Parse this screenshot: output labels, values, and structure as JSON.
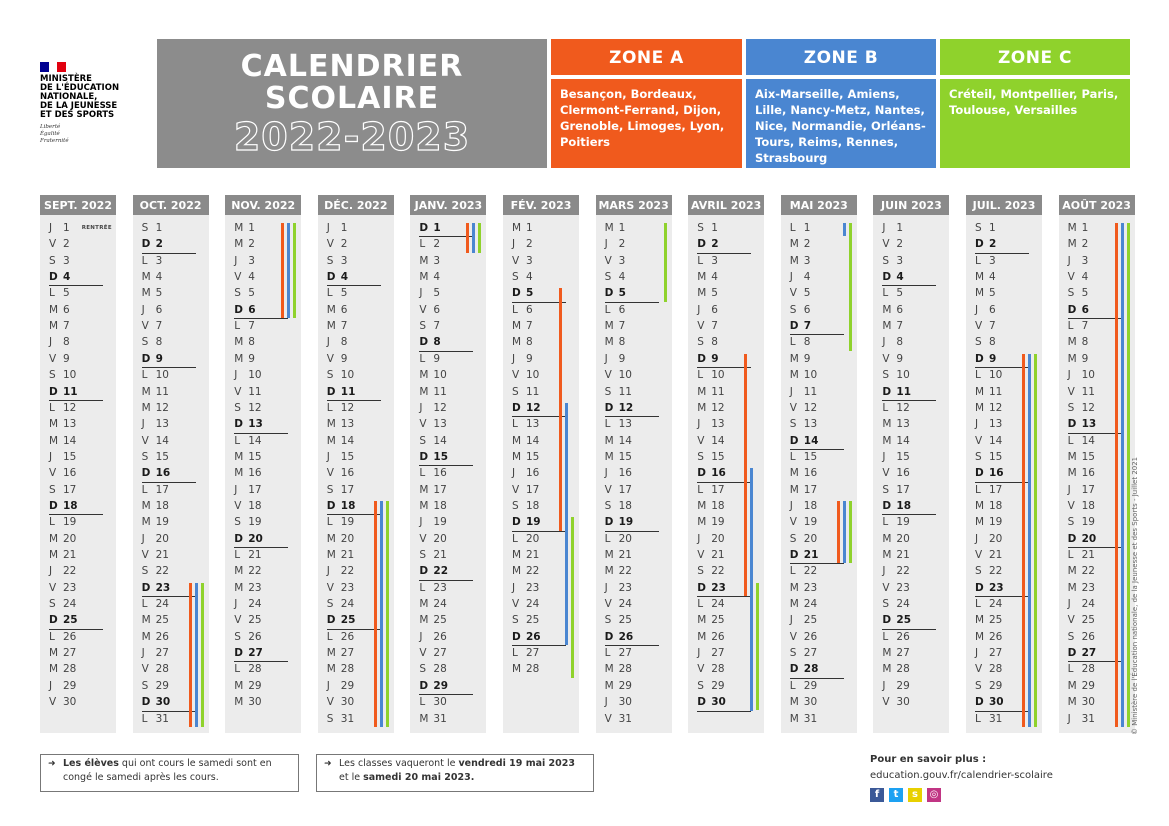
{
  "logo": {
    "ministry": "MINISTÈRE\nDE L'ÉDUCATION\nNATIONALE,\nDE LA JEUNESSE\nET DES SPORTS",
    "motto": "Liberté\nÉgalité\nFraternité",
    "flag_colors": [
      "#000091",
      "#ffffff",
      "#e1000f"
    ]
  },
  "title": {
    "line1": "CALENDRIER",
    "line2": "SCOLAIRE",
    "year": "2022-2023"
  },
  "zones": [
    {
      "name": "ZONE A",
      "color": "#f05a1d",
      "cities": "Besançon, Bordeaux, Clermont-Ferrand, Dijon, Grenoble, Limoges, Lyon, Poitiers"
    },
    {
      "name": "ZONE B",
      "color": "#4a86d1",
      "cities": "Aix-Marseille, Amiens, Lille, Nancy-Metz, Nantes, Nice, Normandie, Orléans-Tours, Reims, Rennes, Strasbourg"
    },
    {
      "name": "ZONE C",
      "color": "#8fd22c",
      "cities": "Créteil, Montpellier, Paris, Toulouse, Versailles"
    }
  ],
  "rentree_label": "RENTRÉE",
  "months": [
    {
      "name": "SEPT. 2022",
      "days": [
        "J 1",
        "V 2",
        "S 3",
        "D 4",
        "L 5",
        "M 6",
        "M 7",
        "J 8",
        "V 9",
        "S 10",
        "D 11",
        "L 12",
        "M 13",
        "M 14",
        "J 15",
        "V 16",
        "S 17",
        "D 18",
        "L 19",
        "M 20",
        "M 21",
        "J 22",
        "V 23",
        "S 24",
        "D 25",
        "L 26",
        "M 27",
        "M 28",
        "J 29",
        "V 30"
      ]
    },
    {
      "name": "OCT. 2022",
      "days": [
        "S 1",
        "D 2",
        "L 3",
        "M 4",
        "M 5",
        "J 6",
        "V 7",
        "S 8",
        "D 9",
        "L 10",
        "M 11",
        "M 12",
        "J 13",
        "V 14",
        "S 15",
        "D 16",
        "L 17",
        "M 18",
        "M 19",
        "J 20",
        "V 21",
        "S 22",
        "D 23",
        "L 24",
        "M 25",
        "M 26",
        "J 27",
        "V 28",
        "S 29",
        "D 30",
        "L 31"
      ]
    },
    {
      "name": "NOV. 2022",
      "days": [
        "M 1",
        "M 2",
        "J 3",
        "V 4",
        "S 5",
        "D 6",
        "L 7",
        "M 8",
        "M 9",
        "J 10",
        "V 11",
        "S 12",
        "D 13",
        "L 14",
        "M 15",
        "M 16",
        "J 17",
        "V 18",
        "S 19",
        "D 20",
        "L 21",
        "M 22",
        "M 23",
        "J 24",
        "V 25",
        "S 26",
        "D 27",
        "L 28",
        "M 29",
        "M 30"
      ]
    },
    {
      "name": "DÉC. 2022",
      "days": [
        "J 1",
        "V 2",
        "S 3",
        "D 4",
        "L 5",
        "M 6",
        "M 7",
        "J 8",
        "V 9",
        "S 10",
        "D 11",
        "L 12",
        "M 13",
        "M 14",
        "J 15",
        "V 16",
        "S 17",
        "D 18",
        "L 19",
        "M 20",
        "M 21",
        "J 22",
        "V 23",
        "S 24",
        "D 25",
        "L 26",
        "M 27",
        "M 28",
        "J 29",
        "V 30",
        "S 31"
      ]
    },
    {
      "name": "JANV. 2023",
      "days": [
        "D 1",
        "L 2",
        "M 3",
        "M 4",
        "J 5",
        "V 6",
        "S 7",
        "D 8",
        "L 9",
        "M 10",
        "M 11",
        "J 12",
        "V 13",
        "S 14",
        "D 15",
        "L 16",
        "M 17",
        "M 18",
        "J 19",
        "V 20",
        "S 21",
        "D 22",
        "L 23",
        "M 24",
        "M 25",
        "J 26",
        "V 27",
        "S 28",
        "D 29",
        "L 30",
        "M 31"
      ]
    },
    {
      "name": "FÉV. 2023",
      "days": [
        "M 1",
        "J 2",
        "V 3",
        "S 4",
        "D 5",
        "L 6",
        "M 7",
        "M 8",
        "J 9",
        "V 10",
        "S 11",
        "D 12",
        "L 13",
        "M 14",
        "M 15",
        "J 16",
        "V 17",
        "S 18",
        "D 19",
        "L 20",
        "M 21",
        "M 22",
        "J 23",
        "V 24",
        "S 25",
        "D 26",
        "L 27",
        "M 28"
      ]
    },
    {
      "name": "MARS 2023",
      "days": [
        "M 1",
        "J 2",
        "V 3",
        "S 4",
        "D 5",
        "L 6",
        "M 7",
        "M 8",
        "J 9",
        "V 10",
        "S 11",
        "D 12",
        "L 13",
        "M 14",
        "M 15",
        "J 16",
        "V 17",
        "S 18",
        "D 19",
        "L 20",
        "M 21",
        "M 22",
        "J 23",
        "V 24",
        "S 25",
        "D 26",
        "L 27",
        "M 28",
        "M 29",
        "J 30",
        "V 31"
      ]
    },
    {
      "name": "AVRIL 2023",
      "days": [
        "S 1",
        "D 2",
        "L 3",
        "M 4",
        "M 5",
        "J 6",
        "V 7",
        "S 8",
        "D 9",
        "L 10",
        "M 11",
        "M 12",
        "J 13",
        "V 14",
        "S 15",
        "D 16",
        "L 17",
        "M 18",
        "M 19",
        "J 20",
        "V 21",
        "S 22",
        "D 23",
        "L 24",
        "M 25",
        "M 26",
        "J 27",
        "V 28",
        "S 29",
        "D 30"
      ]
    },
    {
      "name": "MAI 2023",
      "days": [
        "L 1",
        "M 2",
        "M 3",
        "J 4",
        "V 5",
        "S 6",
        "D 7",
        "L 8",
        "M 9",
        "M 10",
        "J 11",
        "V 12",
        "S 13",
        "D 14",
        "L 15",
        "M 16",
        "M 17",
        "J 18",
        "V 19",
        "S 20",
        "D 21",
        "L 22",
        "M 23",
        "M 24",
        "J 25",
        "V 26",
        "S 27",
        "D 28",
        "L 29",
        "M 30",
        "M 31"
      ]
    },
    {
      "name": "JUIN 2023",
      "days": [
        "J 1",
        "V 2",
        "S 3",
        "D 4",
        "L 5",
        "M 6",
        "M 7",
        "J 8",
        "V 9",
        "S 10",
        "D 11",
        "L 12",
        "M 13",
        "M 14",
        "J 15",
        "V 16",
        "S 17",
        "D 18",
        "L 19",
        "M 20",
        "M 21",
        "J 22",
        "V 23",
        "S 24",
        "D 25",
        "L 26",
        "M 27",
        "M 28",
        "J 29",
        "V 30"
      ]
    },
    {
      "name": "JUIL. 2023",
      "days": [
        "S 1",
        "D 2",
        "L 3",
        "M 4",
        "M 5",
        "J 6",
        "V 7",
        "S 8",
        "D 9",
        "L 10",
        "M 11",
        "M 12",
        "J 13",
        "V 14",
        "S 15",
        "D 16",
        "L 17",
        "M 18",
        "M 19",
        "J 20",
        "V 21",
        "S 22",
        "D 23",
        "L 24",
        "M 25",
        "M 26",
        "J 27",
        "V 28",
        "S 29",
        "D 30",
        "L 31"
      ]
    },
    {
      "name": "AOÛT 2023",
      "days": [
        "M 1",
        "M 2",
        "J 3",
        "V 4",
        "S 5",
        "D 6",
        "L 7",
        "M 8",
        "M 9",
        "J 10",
        "V 11",
        "S 12",
        "D 13",
        "L 14",
        "M 15",
        "M 16",
        "J 17",
        "V 18",
        "S 19",
        "D 20",
        "L 21",
        "M 22",
        "M 23",
        "J 24",
        "V 25",
        "S 26",
        "D 27",
        "L 28",
        "M 29",
        "M 30",
        "J 31"
      ]
    }
  ],
  "holidays": [
    {
      "month": 1,
      "zones": [
        0,
        1,
        2
      ],
      "from": 23,
      "to": 31
    },
    {
      "month": 2,
      "zones": [
        0,
        1,
        2
      ],
      "from": 1,
      "to": 6
    },
    {
      "month": 3,
      "zones": [
        0,
        1,
        2
      ],
      "from": 18,
      "to": 31
    },
    {
      "month": 4,
      "zones": [
        0,
        1,
        2
      ],
      "from": 1,
      "to": 2
    },
    {
      "month": 5,
      "zones": [
        0
      ],
      "from": 5,
      "to": 19
    },
    {
      "month": 5,
      "zones": [
        1
      ],
      "from": 12,
      "to": 26
    },
    {
      "month": 5,
      "zones": [
        2
      ],
      "from": 19,
      "to": 28
    },
    {
      "month": 6,
      "zones": [
        2
      ],
      "from": 1,
      "to": 5
    },
    {
      "month": 7,
      "zones": [
        0
      ],
      "from": 9,
      "to": 23
    },
    {
      "month": 7,
      "zones": [
        1
      ],
      "from": 16,
      "to": 30
    },
    {
      "month": 7,
      "zones": [
        2
      ],
      "from": 23,
      "to": 30
    },
    {
      "month": 8,
      "zones": [
        1
      ],
      "from": 1,
      "to": 1
    },
    {
      "month": 8,
      "zones": [
        2
      ],
      "from": 1,
      "to": 8
    },
    {
      "month": 8,
      "zones": [
        0,
        1,
        2
      ],
      "from": 18,
      "to": 21
    },
    {
      "month": 10,
      "zones": [
        0,
        1,
        2
      ],
      "from": 9,
      "to": 31
    },
    {
      "month": 11,
      "zones": [
        0,
        1,
        2
      ],
      "from": 1,
      "to": 31
    }
  ],
  "notes": [
    {
      "arrow": "➜",
      "parts": [
        {
          "text": "Les élèves",
          "bold": true
        },
        {
          "text": " qui ont cours le samedi sont en congé le samedi après les cours.",
          "bold": false
        }
      ]
    },
    {
      "arrow": "➜",
      "parts": [
        {
          "text": "Les classes vaqueront le ",
          "bold": false
        },
        {
          "text": "vendredi 19 mai 2023",
          "bold": true
        },
        {
          "text": " et le ",
          "bold": false
        },
        {
          "text": "samedi 20 mai 2023.",
          "bold": true
        }
      ]
    }
  ],
  "info": {
    "title": "Pour en savoir plus :",
    "url": "education.gouv.fr/calendrier-scolaire"
  },
  "socials": [
    {
      "icon": "facebook-icon",
      "glyph": "f",
      "color": "#3b5998"
    },
    {
      "icon": "twitter-icon",
      "glyph": "t",
      "color": "#1da1f2"
    },
    {
      "icon": "snapchat-icon",
      "glyph": "s",
      "color": "#e8d000"
    },
    {
      "icon": "instagram-icon",
      "glyph": "◎",
      "color": "#c13584"
    }
  ],
  "copyright": "© Ministère de l'Éducation nationale, de la Jeunesse et des Sports - Juillet 2021"
}
